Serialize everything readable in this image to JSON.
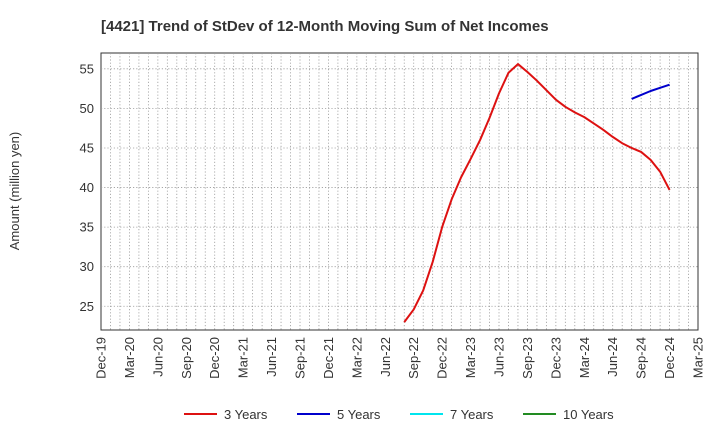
{
  "chart_data": {
    "type": "line",
    "title": "[4421]  Trend of StDev of 12-Month Moving Sum of Net Incomes",
    "ylabel": "Amount (million yen)",
    "xlabel": "",
    "ylim": [
      22,
      57
    ],
    "yticks": [
      25,
      30,
      35,
      40,
      45,
      50,
      55
    ],
    "x_tick_labels": [
      "Dec-19",
      "Mar-20",
      "Jun-20",
      "Sep-20",
      "Dec-20",
      "Mar-21",
      "Jun-21",
      "Sep-21",
      "Dec-21",
      "Mar-22",
      "Jun-22",
      "Sep-22",
      "Dec-22",
      "Mar-23",
      "Jun-23",
      "Sep-23",
      "Dec-23",
      "Mar-24",
      "Jun-24",
      "Sep-24",
      "Dec-24",
      "Mar-25"
    ],
    "grid": true,
    "legend_position": "bottom",
    "series": [
      {
        "name": "3 Years",
        "color": "#dd1111",
        "points": [
          [
            "Aug-22",
            23.0
          ],
          [
            "Sep-22",
            24.6
          ],
          [
            "Oct-22",
            27.0
          ],
          [
            "Nov-22",
            30.6
          ],
          [
            "Dec-22",
            35.0
          ],
          [
            "Jan-23",
            38.5
          ],
          [
            "Feb-23",
            41.3
          ],
          [
            "Mar-23",
            43.6
          ],
          [
            "Apr-23",
            46.0
          ],
          [
            "May-23",
            48.8
          ],
          [
            "Jun-23",
            51.9
          ],
          [
            "Jul-23",
            54.5
          ],
          [
            "Aug-23",
            55.6
          ],
          [
            "Sep-23",
            54.6
          ],
          [
            "Oct-23",
            53.5
          ],
          [
            "Nov-23",
            52.3
          ],
          [
            "Dec-23",
            51.1
          ],
          [
            "Jan-24",
            50.2
          ],
          [
            "Feb-24",
            49.5
          ],
          [
            "Mar-24",
            48.9
          ],
          [
            "Apr-24",
            48.1
          ],
          [
            "May-24",
            47.3
          ],
          [
            "Jun-24",
            46.4
          ],
          [
            "Jul-24",
            45.6
          ],
          [
            "Aug-24",
            45.0
          ],
          [
            "Sep-24",
            44.5
          ],
          [
            "Oct-24",
            43.5
          ],
          [
            "Nov-24",
            42.0
          ],
          [
            "Dec-24",
            39.7
          ]
        ]
      },
      {
        "name": "5 Years",
        "color": "#0000cc",
        "points": [
          [
            "Aug-24",
            51.2
          ],
          [
            "Sep-24",
            51.7
          ],
          [
            "Oct-24",
            52.2
          ],
          [
            "Nov-24",
            52.6
          ],
          [
            "Dec-24",
            53.0
          ]
        ]
      },
      {
        "name": "7 Years",
        "color": "#00e5ee",
        "points": []
      },
      {
        "name": "10 Years",
        "color": "#228b22",
        "points": []
      }
    ]
  }
}
